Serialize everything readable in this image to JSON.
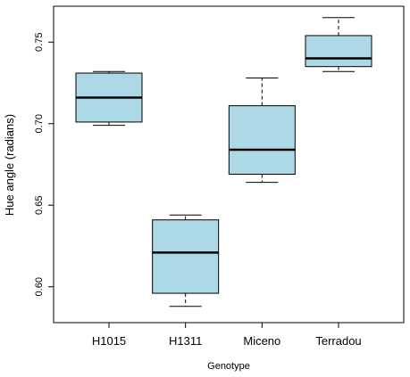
{
  "chart_data": {
    "type": "boxplot",
    "xlabel": "Genotype",
    "ylabel": "Hue angle (radians)",
    "ylim": [
      0.578,
      0.772
    ],
    "yticks": [
      0.6,
      0.65,
      0.7,
      0.75
    ],
    "ytick_labels": [
      "0.60",
      "0.65",
      "0.70",
      "0.75"
    ],
    "categories": [
      "H1015",
      "H1311",
      "Miceno",
      "Terradou"
    ],
    "boxes": [
      {
        "category": "H1015",
        "whisker_low": 0.699,
        "q1": 0.701,
        "median": 0.716,
        "q3": 0.731,
        "whisker_high": 0.732
      },
      {
        "category": "H1311",
        "whisker_low": 0.588,
        "q1": 0.596,
        "median": 0.621,
        "q3": 0.641,
        "whisker_high": 0.644
      },
      {
        "category": "Miceno",
        "whisker_low": 0.664,
        "q1": 0.669,
        "median": 0.684,
        "q3": 0.711,
        "whisker_high": 0.728
      },
      {
        "category": "Terradou",
        "whisker_low": 0.732,
        "q1": 0.735,
        "median": 0.74,
        "q3": 0.754,
        "whisker_high": 0.765
      }
    ],
    "box_color": "#ADD8E6",
    "grid": false,
    "legend": "none"
  }
}
